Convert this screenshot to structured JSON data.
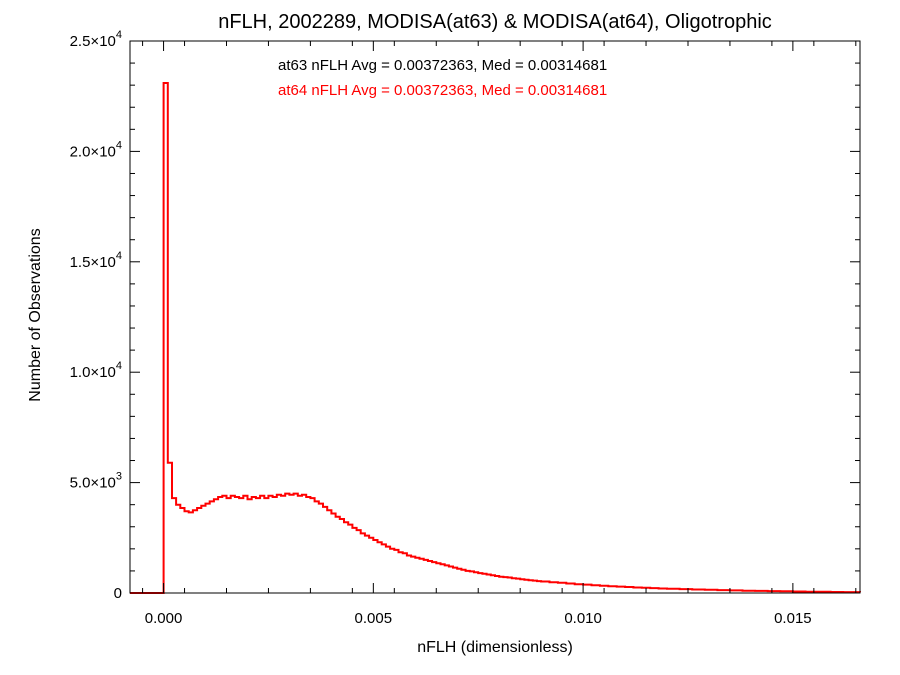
{
  "chart_data": {
    "type": "histogram",
    "title": "nFLH, 2002289, MODISA(at63) & MODISA(at64), Oligotrophic",
    "xlabel": "nFLH (dimensionless)",
    "ylabel": "Number of Observations",
    "xlim": [
      -0.0008,
      0.0166
    ],
    "ylim": [
      0,
      25000
    ],
    "x_ticks": [
      {
        "value": 0.0,
        "label": "0.000"
      },
      {
        "value": 0.005,
        "label": "0.005"
      },
      {
        "value": 0.01,
        "label": "0.010"
      },
      {
        "value": 0.015,
        "label": "0.015"
      }
    ],
    "y_ticks": [
      {
        "value": 0,
        "label": "0",
        "mant": "",
        "exp": ""
      },
      {
        "value": 5000,
        "label": "",
        "mant": "5.0×10",
        "exp": "3"
      },
      {
        "value": 10000,
        "label": "",
        "mant": "1.0×10",
        "exp": "4"
      },
      {
        "value": 15000,
        "label": "",
        "mant": "1.5×10",
        "exp": "4"
      },
      {
        "value": 20000,
        "label": "",
        "mant": "2.0×10",
        "exp": "4"
      },
      {
        "value": 25000,
        "label": "",
        "mant": "2.5×10",
        "exp": "4"
      }
    ],
    "grid": false,
    "annotations": [
      {
        "text": "at63 nFLH Avg = 0.00372363, Med = 0.00314681",
        "color": "#000000"
      },
      {
        "text": "at64 nFLH Avg = 0.00372363, Med = 0.00314681",
        "color": "#ff0000"
      }
    ],
    "series": [
      {
        "color": "#ff0000",
        "points": [
          [
            -0.0008,
            0
          ],
          [
            -0.0001,
            0
          ],
          [
            0.0,
            23100
          ],
          [
            0.0001,
            5900
          ],
          [
            0.0002,
            4300
          ],
          [
            0.0003,
            4000
          ],
          [
            0.0004,
            3850
          ],
          [
            0.0005,
            3700
          ],
          [
            0.0006,
            3650
          ],
          [
            0.0007,
            3750
          ],
          [
            0.0008,
            3850
          ],
          [
            0.0009,
            3950
          ],
          [
            0.001,
            4050
          ],
          [
            0.0011,
            4150
          ],
          [
            0.0012,
            4250
          ],
          [
            0.0013,
            4350
          ],
          [
            0.0014,
            4400
          ],
          [
            0.0015,
            4300
          ],
          [
            0.0016,
            4400
          ],
          [
            0.0017,
            4350
          ],
          [
            0.0018,
            4300
          ],
          [
            0.0019,
            4400
          ],
          [
            0.002,
            4250
          ],
          [
            0.0021,
            4350
          ],
          [
            0.0022,
            4300
          ],
          [
            0.0023,
            4400
          ],
          [
            0.0024,
            4300
          ],
          [
            0.0025,
            4400
          ],
          [
            0.0026,
            4350
          ],
          [
            0.0027,
            4450
          ],
          [
            0.0028,
            4400
          ],
          [
            0.0029,
            4500
          ],
          [
            0.003,
            4450
          ],
          [
            0.0031,
            4500
          ],
          [
            0.0032,
            4400
          ],
          [
            0.0033,
            4450
          ],
          [
            0.0034,
            4350
          ],
          [
            0.0035,
            4300
          ],
          [
            0.0036,
            4150
          ],
          [
            0.0037,
            4050
          ],
          [
            0.0038,
            3900
          ],
          [
            0.0039,
            3750
          ],
          [
            0.004,
            3600
          ],
          [
            0.0041,
            3450
          ],
          [
            0.0042,
            3350
          ],
          [
            0.0043,
            3200
          ],
          [
            0.0044,
            3100
          ],
          [
            0.0045,
            2950
          ],
          [
            0.0046,
            2850
          ],
          [
            0.0047,
            2700
          ],
          [
            0.0048,
            2600
          ],
          [
            0.0049,
            2500
          ],
          [
            0.005,
            2400
          ],
          [
            0.0051,
            2300
          ],
          [
            0.0052,
            2200
          ],
          [
            0.0053,
            2100
          ],
          [
            0.0054,
            2000
          ],
          [
            0.0055,
            1950
          ],
          [
            0.0056,
            1850
          ],
          [
            0.0057,
            1800
          ],
          [
            0.0058,
            1700
          ],
          [
            0.0059,
            1650
          ],
          [
            0.006,
            1600
          ],
          [
            0.0061,
            1550
          ],
          [
            0.0062,
            1500
          ],
          [
            0.0063,
            1450
          ],
          [
            0.0064,
            1400
          ],
          [
            0.0065,
            1350
          ],
          [
            0.0066,
            1300
          ],
          [
            0.0067,
            1250
          ],
          [
            0.0068,
            1200
          ],
          [
            0.0069,
            1150
          ],
          [
            0.007,
            1100
          ],
          [
            0.0071,
            1050
          ],
          [
            0.0072,
            1000
          ],
          [
            0.0073,
            980
          ],
          [
            0.0074,
            940
          ],
          [
            0.0075,
            900
          ],
          [
            0.0076,
            870
          ],
          [
            0.0077,
            840
          ],
          [
            0.0078,
            800
          ],
          [
            0.0079,
            770
          ],
          [
            0.008,
            740
          ],
          [
            0.0081,
            720
          ],
          [
            0.0082,
            700
          ],
          [
            0.0083,
            670
          ],
          [
            0.0084,
            650
          ],
          [
            0.0085,
            620
          ],
          [
            0.0086,
            600
          ],
          [
            0.0087,
            580
          ],
          [
            0.0088,
            560
          ],
          [
            0.0089,
            540
          ],
          [
            0.009,
            520
          ],
          [
            0.0092,
            490
          ],
          [
            0.0094,
            460
          ],
          [
            0.0096,
            430
          ],
          [
            0.0098,
            400
          ],
          [
            0.01,
            380
          ],
          [
            0.0102,
            350
          ],
          [
            0.0104,
            330
          ],
          [
            0.0106,
            310
          ],
          [
            0.0108,
            290
          ],
          [
            0.011,
            270
          ],
          [
            0.0112,
            250
          ],
          [
            0.0114,
            235
          ],
          [
            0.0116,
            220
          ],
          [
            0.0118,
            205
          ],
          [
            0.012,
            190
          ],
          [
            0.0123,
            175
          ],
          [
            0.0126,
            160
          ],
          [
            0.0129,
            145
          ],
          [
            0.0132,
            130
          ],
          [
            0.0135,
            118
          ],
          [
            0.0138,
            106
          ],
          [
            0.0141,
            95
          ],
          [
            0.0144,
            85
          ],
          [
            0.0147,
            76
          ],
          [
            0.015,
            68
          ],
          [
            0.0153,
            60
          ],
          [
            0.0156,
            53
          ],
          [
            0.0159,
            47
          ],
          [
            0.0162,
            42
          ],
          [
            0.0166,
            38
          ]
        ]
      }
    ]
  }
}
